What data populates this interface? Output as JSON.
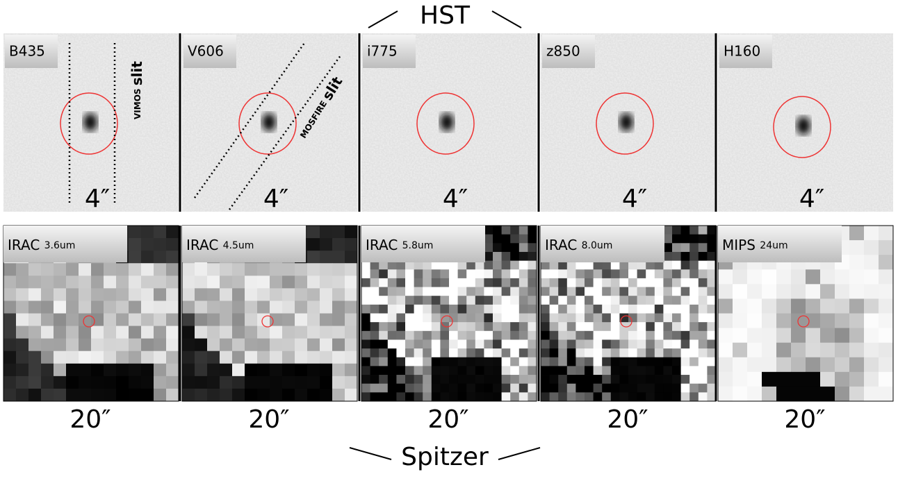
{
  "header": {
    "top": "HST",
    "bottom": "Spitzer"
  },
  "hst_panels": [
    {
      "label": "B435",
      "scale": "4″"
    },
    {
      "label": "V606",
      "scale": "4″"
    },
    {
      "label": "i775",
      "scale": "4″"
    },
    {
      "label": "z850",
      "scale": "4″"
    },
    {
      "label": "H160",
      "scale": "4″"
    }
  ],
  "spitzer_panels": [
    {
      "instrument": "IRAC",
      "band": "3.6um",
      "scale": "20″"
    },
    {
      "instrument": "IRAC",
      "band": "4.5um",
      "scale": "20″"
    },
    {
      "instrument": "IRAC",
      "band": "5.8um",
      "scale": "20″"
    },
    {
      "instrument": "IRAC",
      "band": "8.0um",
      "scale": "20″"
    },
    {
      "instrument": "MIPS",
      "band": "24um",
      "scale": "20″"
    }
  ],
  "slits": {
    "vimos": {
      "name": "VIMOS",
      "word": "slit"
    },
    "mosfire": {
      "name": "MOSFIRE",
      "word": "slit"
    }
  }
}
